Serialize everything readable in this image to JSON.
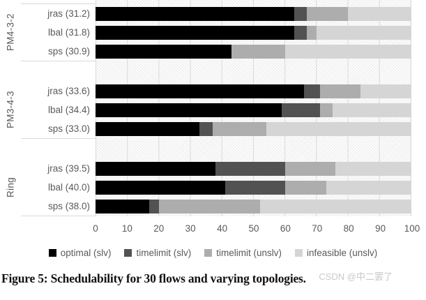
{
  "caption": "Figure 5: Schedulability for 30 flows and varying topologies.",
  "watermark": "CSDN @中二罢了",
  "colors": {
    "optimal_slv": "#000000",
    "timelimit_slv": "#525252",
    "timelimit_unslv": "#adadad",
    "infeasible_unslv": "#d5d5d5",
    "gridline": "#d9d9d9",
    "axis_text": "#595959"
  },
  "chart_data": {
    "type": "bar",
    "variant": "horizontal-stacked",
    "title": "",
    "xlabel": "",
    "ylabel": "",
    "xlim": [
      0,
      100
    ],
    "grid": true,
    "legend_position": "bottom",
    "legend": [
      {
        "label": "optimal (slv)",
        "color": "#000000"
      },
      {
        "label": "timelimit (slv)",
        "color": "#525252"
      },
      {
        "label": "timelimit (unslv)",
        "color": "#adadad"
      },
      {
        "label": "infeasible (unslv)",
        "color": "#d5d5d5"
      }
    ],
    "x_ticks": [
      0,
      10,
      20,
      30,
      40,
      50,
      60,
      70,
      80,
      90,
      100
    ],
    "groups": [
      {
        "name": "PM4-3-2",
        "bars": [
          {
            "label": "jras (31.2)",
            "values": [
              63,
              4,
              13,
              20
            ]
          },
          {
            "label": "lbal (31.8)",
            "values": [
              63,
              4,
              3,
              30
            ]
          },
          {
            "label": "sps (30.9)",
            "values": [
              43,
              0,
              17,
              40
            ]
          }
        ]
      },
      {
        "name": "PM3-4-3",
        "bars": [
          {
            "label": "jras (33.6)",
            "values": [
              66,
              5,
              13,
              16
            ]
          },
          {
            "label": "lbal (34.4)",
            "values": [
              59,
              12,
              4,
              25
            ]
          },
          {
            "label": "sps (33.0)",
            "values": [
              33,
              4,
              17,
              46
            ]
          }
        ]
      },
      {
        "name": "Ring",
        "bars": [
          {
            "label": "jras (39.5)",
            "values": [
              38,
              22,
              16,
              24
            ]
          },
          {
            "label": "lbal (40.0)",
            "values": [
              41,
              19,
              13,
              27
            ]
          },
          {
            "label": "sps (38.0)",
            "values": [
              17,
              3,
              32,
              48
            ]
          }
        ]
      }
    ]
  }
}
